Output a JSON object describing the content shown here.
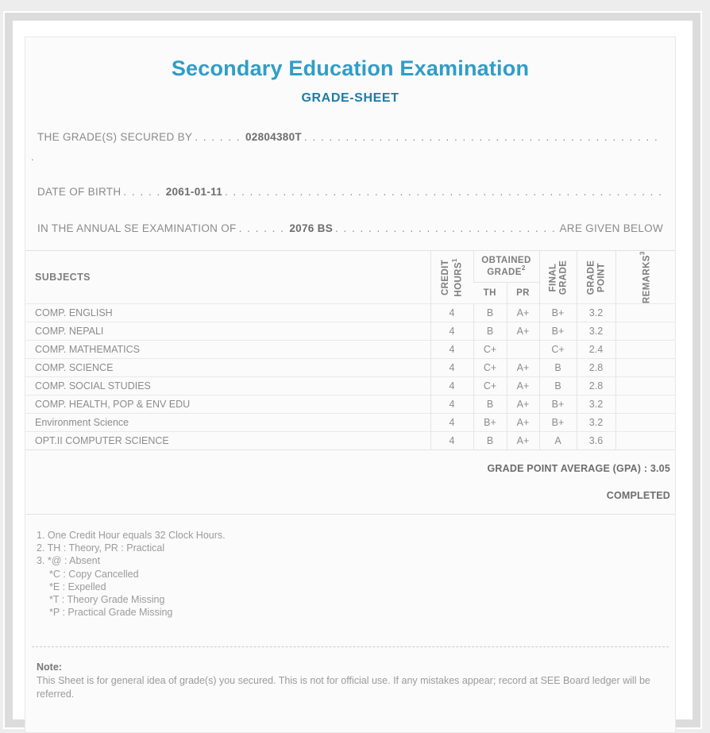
{
  "colors": {
    "title_blue": "#2f9dc9",
    "subtitle_teal": "#1e7ca4",
    "text_grey": "#8b8b8b",
    "bold_grey": "#6d6d6d",
    "frame_grey": "#dcdcdc"
  },
  "header": {
    "title": "Secondary Education Examination",
    "subtitle": "GRADE-SHEET"
  },
  "info": {
    "line1_label": "THE GRADE(S) SECURED BY",
    "line1_dots": ". . . . . .",
    "line1_value": "02804380T",
    "name_continuation": ".",
    "line2_label": "DATE OF BIRTH",
    "line2_dots": ". . . . .",
    "line2_value": "2061-01-11",
    "line3_label": "IN THE ANNUAL SE EXAMINATION OF",
    "line3_dots": ". . . . . .",
    "line3_value": "2076 BS",
    "line3_suffix": "ARE GIVEN BELOW",
    "dot_fill": ". . . . . . . . . . . . . . . . . . . . . . . . . . . . . . . . . . . . . . . . . . . . . . . . . . . . . . . . . . . . . . . . . . . . . . . . . . . . . . . . . . . . . . . . . . . . . . . . . . . . . . . . . . . . . . . . . . . . . . . . . . . ."
  },
  "table": {
    "header": {
      "subjects": "SUBJECTS",
      "credit_line1": "CREDIT",
      "credit_line2": "HOURS",
      "credit_sup": "1",
      "obtained_line1": "OBTAINED",
      "obtained_line2": "GRADE",
      "obtained_sup": "2",
      "th": "TH",
      "pr": "PR",
      "final_line1": "FINAL",
      "final_line2": "GRADE",
      "gpoint_line1": "GRADE",
      "gpoint_line2": "POINT",
      "remarks": "REMARKS",
      "remarks_sup": "3"
    },
    "rows": [
      {
        "subject": "COMP. ENGLISH",
        "credit": "4",
        "th": "B",
        "pr": "A+",
        "final": "B+",
        "point": "3.2",
        "remarks": ""
      },
      {
        "subject": "COMP. NEPALI",
        "credit": "4",
        "th": "B",
        "pr": "A+",
        "final": "B+",
        "point": "3.2",
        "remarks": ""
      },
      {
        "subject": "COMP. MATHEMATICS",
        "credit": "4",
        "th": "C+",
        "pr": "",
        "final": "C+",
        "point": "2.4",
        "remarks": ""
      },
      {
        "subject": "COMP. SCIENCE",
        "credit": "4",
        "th": "C+",
        "pr": "A+",
        "final": "B",
        "point": "2.8",
        "remarks": ""
      },
      {
        "subject": "COMP. SOCIAL STUDIES",
        "credit": "4",
        "th": "C+",
        "pr": "A+",
        "final": "B",
        "point": "2.8",
        "remarks": ""
      },
      {
        "subject": "COMP. HEALTH, POP & ENV EDU",
        "credit": "4",
        "th": "B",
        "pr": "A+",
        "final": "B+",
        "point": "3.2",
        "remarks": ""
      },
      {
        "subject": "Environment Science",
        "credit": "4",
        "th": "B+",
        "pr": "A+",
        "final": "B+",
        "point": "3.2",
        "remarks": ""
      },
      {
        "subject": "OPT.II COMPUTER SCIENCE",
        "credit": "4",
        "th": "B",
        "pr": "A+",
        "final": "A",
        "point": "3.6",
        "remarks": ""
      }
    ],
    "gpa_line": "GRADE POINT AVERAGE (GPA) : 3.05",
    "status": "COMPLETED"
  },
  "footnotes": [
    {
      "text": "1. One Credit Hour equals 32 Clock Hours.",
      "indent": false
    },
    {
      "text": "2. TH : Theory, PR : Practical",
      "indent": false
    },
    {
      "text": "3. *@ : Absent",
      "indent": false
    },
    {
      "text": "*C : Copy Cancelled",
      "indent": true
    },
    {
      "text": "*E : Expelled",
      "indent": true
    },
    {
      "text": "*T : Theory Grade Missing",
      "indent": true
    },
    {
      "text": "*P : Practical Grade Missing",
      "indent": true
    }
  ],
  "note": {
    "heading": "Note:",
    "body": "This Sheet is for general idea of grade(s) you secured. This is not for official use. If any mistakes appear; record at SEE Board ledger will be referred."
  }
}
